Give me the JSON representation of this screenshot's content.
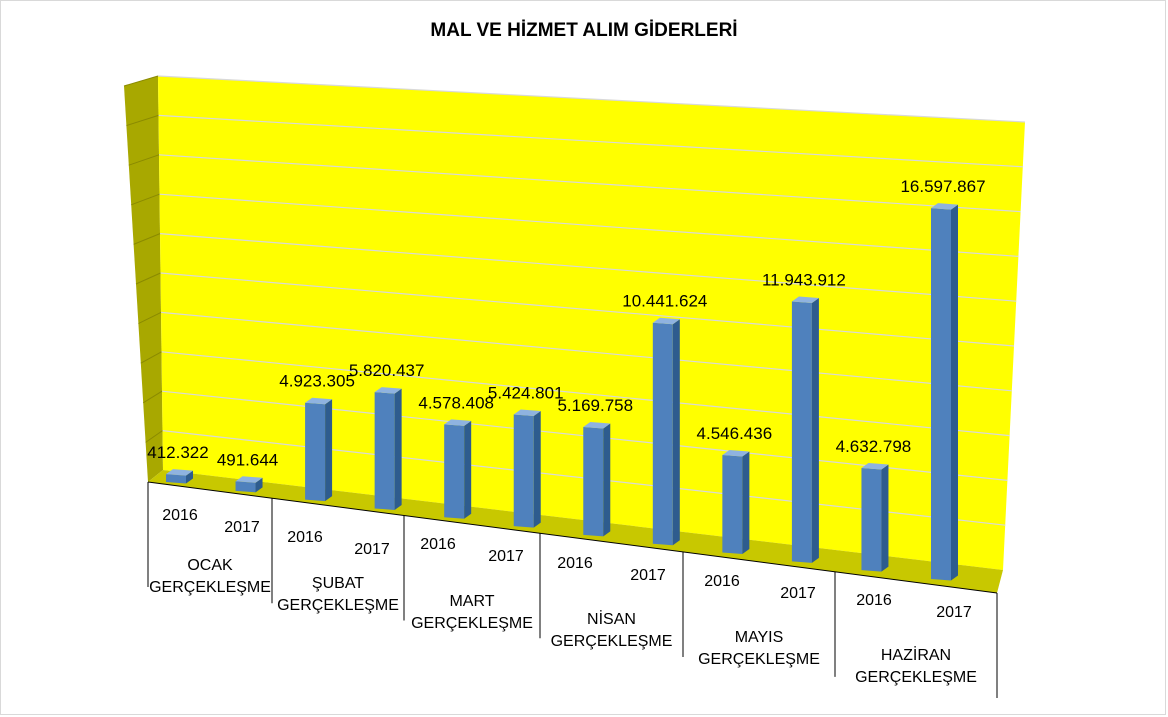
{
  "chart_data": {
    "type": "bar",
    "title": "MAL VE HİZMET ALIM GİDERLERİ",
    "xlabel": "",
    "ylabel": "",
    "three_d": true,
    "grid": true,
    "legend": "none",
    "ylim": [
      0,
      20000000
    ],
    "groups": [
      {
        "name": "OCAK",
        "line2": "GERÇEKLEŞME"
      },
      {
        "name": "ŞUBAT",
        "line2": "GERÇEKLEŞME"
      },
      {
        "name": "MART",
        "line2": "GERÇEKLEŞME"
      },
      {
        "name": "NİSAN",
        "line2": "GERÇEKLEŞME"
      },
      {
        "name": "MAYIS",
        "line2": "GERÇEKLEŞME"
      },
      {
        "name": "HAZİRAN",
        "line2": "GERÇEKLEŞME"
      }
    ],
    "categories": [
      "2016",
      "2017"
    ],
    "values": [
      [
        412322,
        491644
      ],
      [
        4923305,
        5820437
      ],
      [
        4578408,
        5424801
      ],
      [
        5169758,
        10441624
      ],
      [
        4546436,
        11943912
      ],
      [
        4632798,
        16597867
      ]
    ],
    "value_labels": [
      [
        "412.322",
        "491.644"
      ],
      [
        "4.923.305",
        "5.820.437"
      ],
      [
        "4.578.408",
        "5.424.801"
      ],
      [
        "5.169.758",
        "10.441.624"
      ],
      [
        "4.546.436",
        "11.943.912"
      ],
      [
        "4.632.798",
        "16.597.867"
      ]
    ],
    "colors": {
      "bar_front": "#4F81BD",
      "bar_side": "#2E5C8E",
      "bar_top": "#8FB3E0",
      "back_wall": "#FFFF00",
      "side_wall": "#A8A800",
      "floor": "#C8C800",
      "gridline": "#D9D9D9"
    }
  }
}
